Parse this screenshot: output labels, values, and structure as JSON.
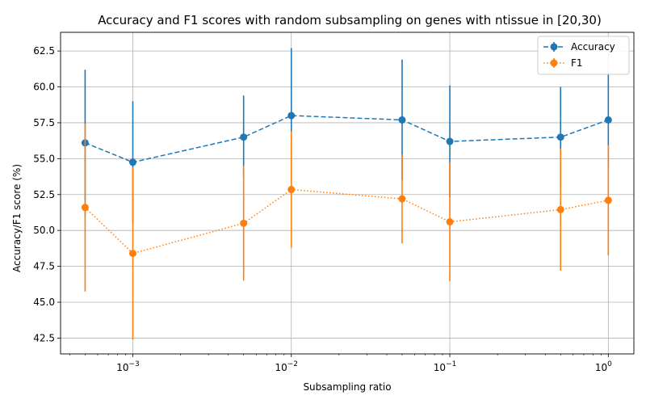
{
  "chart_data": {
    "type": "line",
    "title": "Accuracy and F1 scores with random subsampling on genes with ntissue in [20,30)",
    "xlabel": "Subsampling ratio",
    "ylabel": "Accuracy/F1 score (%)",
    "x_scale": "log",
    "xlim": [
      0.00035,
      1.45
    ],
    "ylim": [
      41.4,
      63.8
    ],
    "grid": true,
    "legend_position": "top-right",
    "x_ticks": [
      {
        "value": 0.001,
        "base": "10",
        "exp": "−3"
      },
      {
        "value": 0.01,
        "base": "10",
        "exp": "−2"
      },
      {
        "value": 0.1,
        "base": "10",
        "exp": "−1"
      },
      {
        "value": 1,
        "base": "10",
        "exp": "0"
      }
    ],
    "y_ticks": [
      {
        "value": 42.5,
        "label": "42.5"
      },
      {
        "value": 45.0,
        "label": "45.0"
      },
      {
        "value": 47.5,
        "label": "47.5"
      },
      {
        "value": 50.0,
        "label": "50.0"
      },
      {
        "value": 52.5,
        "label": "52.5"
      },
      {
        "value": 55.0,
        "label": "55.0"
      },
      {
        "value": 57.5,
        "label": "57.5"
      },
      {
        "value": 60.0,
        "label": "60.0"
      },
      {
        "value": 62.5,
        "label": "62.5"
      }
    ],
    "x": [
      0.0005,
      0.001,
      0.005,
      0.01,
      0.05,
      0.1,
      0.5,
      1.0
    ],
    "series": [
      {
        "name": "Accuracy",
        "color": "#1f77b4",
        "line_style": "dashed",
        "values": [
          56.1,
          54.75,
          56.5,
          58.0,
          57.7,
          56.2,
          56.5,
          57.7
        ],
        "errors": [
          5.1,
          4.25,
          2.9,
          4.7,
          4.2,
          3.9,
          3.5,
          3.3
        ]
      },
      {
        "name": "F1",
        "color": "#ff7f0e",
        "line_style": "dotted",
        "values": [
          51.6,
          48.4,
          50.5,
          52.85,
          52.2,
          50.6,
          51.45,
          52.1
        ],
        "errors": [
          5.85,
          6.0,
          4.0,
          4.05,
          3.1,
          4.15,
          4.25,
          3.85
        ]
      }
    ]
  }
}
